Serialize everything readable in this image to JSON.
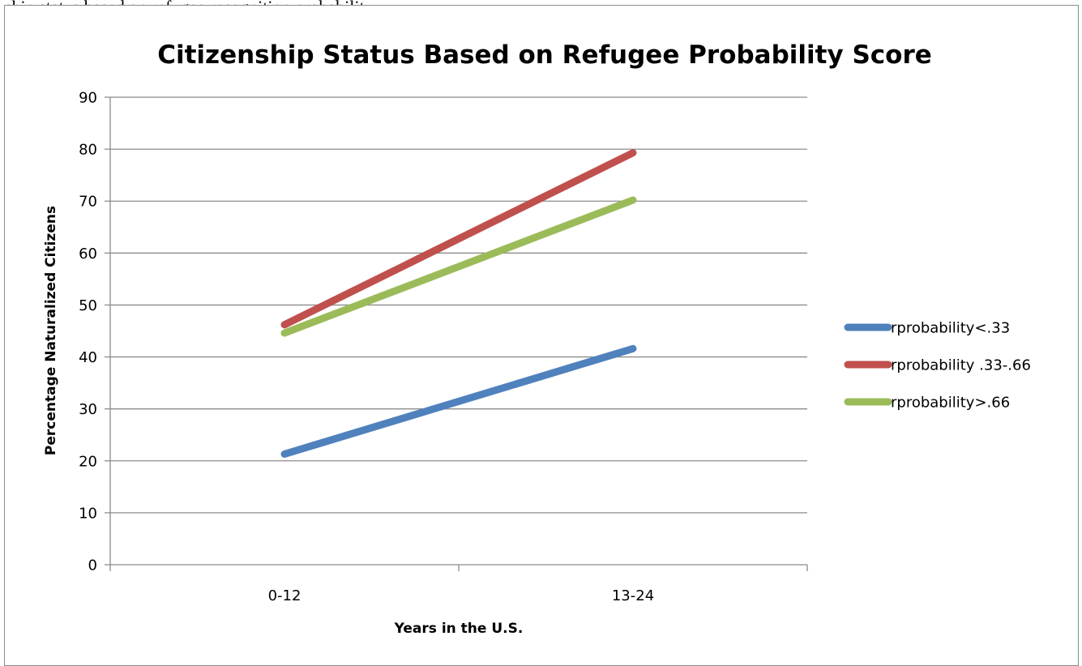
{
  "page_text": "ship status based on refugee recognition probability",
  "chart_data": {
    "type": "line",
    "title": "Citizenship Status Based on Refugee Probability Score",
    "xlabel": "Years in the U.S.",
    "ylabel": "Percentage Naturalized Citizens",
    "categories": [
      "0-12",
      "13-24"
    ],
    "ylim": [
      0,
      90
    ],
    "yticks": [
      0,
      10,
      20,
      30,
      40,
      50,
      60,
      70,
      80,
      90
    ],
    "grid": true,
    "legend_position": "right",
    "series": [
      {
        "name": "rprobability<.33",
        "values": [
          21.3,
          41.6
        ],
        "color": "#4f81bd"
      },
      {
        "name": "rprobability .33-.66",
        "values": [
          46.2,
          79.3
        ],
        "color": "#c0504d"
      },
      {
        "name": "rprobability>.66",
        "values": [
          44.6,
          70.2
        ],
        "color": "#9bbb59"
      }
    ]
  }
}
